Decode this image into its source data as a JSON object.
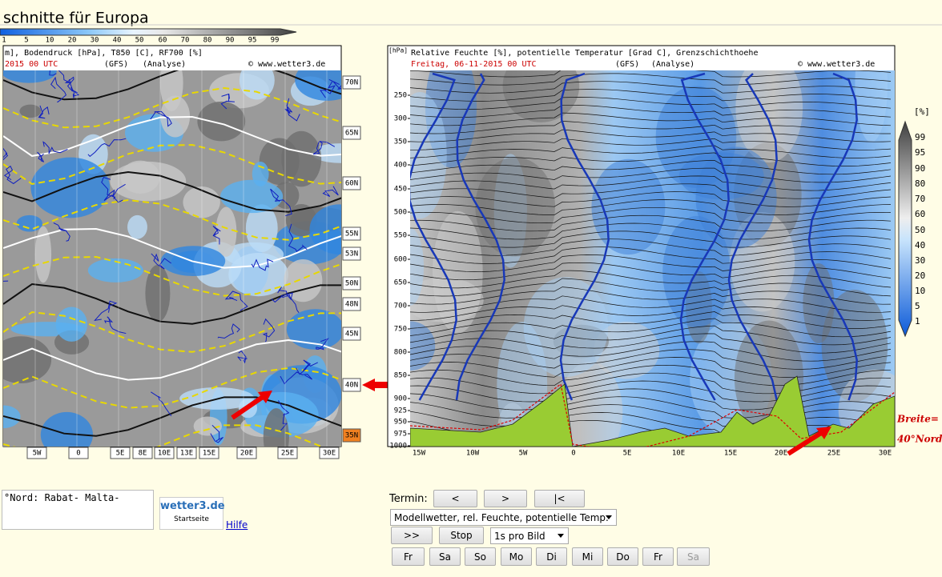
{
  "header": {
    "title": "schnitte für Europa"
  },
  "top_scale": {
    "labels": [
      "1",
      "5",
      "10",
      "20",
      "30",
      "40",
      "50",
      "60",
      "70",
      "80",
      "90",
      "95",
      "99"
    ]
  },
  "map": {
    "header_line": "m], Bodendruck [hPa], T850 [C], RF700 [%]",
    "date": "2015  00 UTC",
    "model": "(GFS)",
    "mode": "(Analyse)",
    "copyright": "© www.wetter3.de",
    "lat_labels": [
      "70N",
      "65N",
      "60N",
      "55N",
      "53N",
      "50N",
      "48N",
      "45N",
      "40N",
      "35N"
    ],
    "lon_labels": [
      "5W",
      "0",
      "5E",
      "8E",
      "10E",
      "13E",
      "15E",
      "20E",
      "25E",
      "30E"
    ]
  },
  "cross_section": {
    "unit": "[hPa]",
    "header_line": "Relative Feuchte [%], potentielle Temperatur [Grad C], Grenzschichthoehe",
    "date": "Freitag, 06-11-2015  00 UTC",
    "model": "(GFS)",
    "mode": "(Analyse)",
    "copyright": "© www.wetter3.de",
    "pressure_labels": [
      "250",
      "300",
      "350",
      "400",
      "450",
      "500",
      "550",
      "600",
      "650",
      "700",
      "750",
      "800",
      "850",
      "900",
      "925",
      "950",
      "975",
      "1000"
    ],
    "lon_labels": [
      "15W",
      "10W",
      "5W",
      "0",
      "5E",
      "10E",
      "15E",
      "20E",
      "25E",
      "30E"
    ],
    "annotation": [
      "Breite=",
      "40°Nord"
    ]
  },
  "colorbar": {
    "unit": "[%]",
    "labels": [
      "99",
      "95",
      "90",
      "80",
      "70",
      "60",
      "50",
      "40",
      "30",
      "20",
      "10",
      "5",
      "1"
    ]
  },
  "controls": {
    "note": "°Nord: Rabat- Malta-",
    "logo": "wetter3.de",
    "logo_sub": "Startseite",
    "help": "Hilfe",
    "termin_label": "Termin:",
    "nav_buttons": [
      "<",
      ">",
      "|<"
    ],
    "product_select": "Modellwetter, rel. Feuchte, potentielle Temp.",
    "play": ">>",
    "stop": "Stop",
    "speed_select": "1s pro Bild",
    "days": [
      "Fr",
      "Sa",
      "So",
      "Mo",
      "Di",
      "Mi",
      "Do",
      "Fr",
      "Sa"
    ]
  }
}
